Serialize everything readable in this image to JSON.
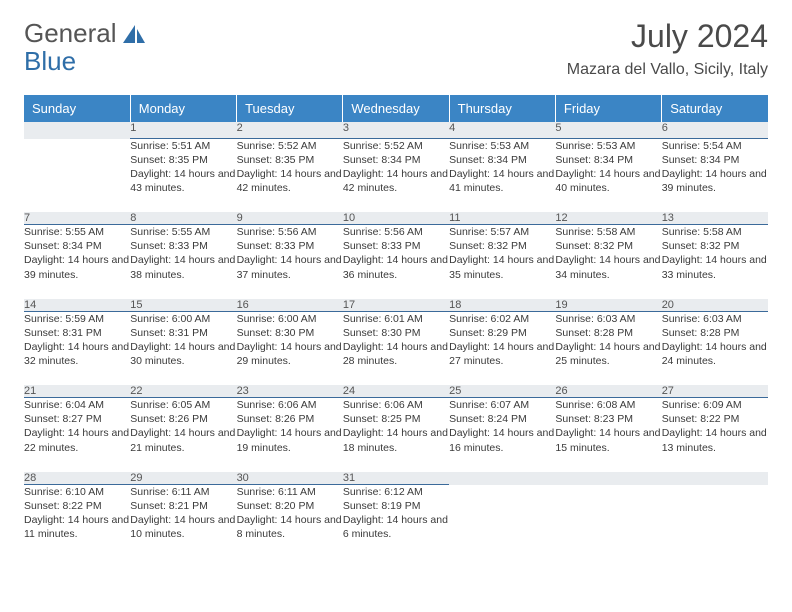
{
  "logo": {
    "part1": "General",
    "part2": "Blue"
  },
  "title": "July 2024",
  "location": "Mazara del Vallo, Sicily, Italy",
  "colors": {
    "header_bg": "#3b85c5",
    "header_text": "#ffffff",
    "daynum_bg": "#e9ecef",
    "day_border": "#3b6a9a",
    "logo_blue": "#2f6ea8",
    "text": "#3a3a3a"
  },
  "weekdays": [
    "Sunday",
    "Monday",
    "Tuesday",
    "Wednesday",
    "Thursday",
    "Friday",
    "Saturday"
  ],
  "weeks": [
    [
      null,
      {
        "n": "1",
        "sr": "5:51 AM",
        "ss": "8:35 PM",
        "dl": "14 hours and 43 minutes."
      },
      {
        "n": "2",
        "sr": "5:52 AM",
        "ss": "8:35 PM",
        "dl": "14 hours and 42 minutes."
      },
      {
        "n": "3",
        "sr": "5:52 AM",
        "ss": "8:34 PM",
        "dl": "14 hours and 42 minutes."
      },
      {
        "n": "4",
        "sr": "5:53 AM",
        "ss": "8:34 PM",
        "dl": "14 hours and 41 minutes."
      },
      {
        "n": "5",
        "sr": "5:53 AM",
        "ss": "8:34 PM",
        "dl": "14 hours and 40 minutes."
      },
      {
        "n": "6",
        "sr": "5:54 AM",
        "ss": "8:34 PM",
        "dl": "14 hours and 39 minutes."
      }
    ],
    [
      {
        "n": "7",
        "sr": "5:55 AM",
        "ss": "8:34 PM",
        "dl": "14 hours and 39 minutes."
      },
      {
        "n": "8",
        "sr": "5:55 AM",
        "ss": "8:33 PM",
        "dl": "14 hours and 38 minutes."
      },
      {
        "n": "9",
        "sr": "5:56 AM",
        "ss": "8:33 PM",
        "dl": "14 hours and 37 minutes."
      },
      {
        "n": "10",
        "sr": "5:56 AM",
        "ss": "8:33 PM",
        "dl": "14 hours and 36 minutes."
      },
      {
        "n": "11",
        "sr": "5:57 AM",
        "ss": "8:32 PM",
        "dl": "14 hours and 35 minutes."
      },
      {
        "n": "12",
        "sr": "5:58 AM",
        "ss": "8:32 PM",
        "dl": "14 hours and 34 minutes."
      },
      {
        "n": "13",
        "sr": "5:58 AM",
        "ss": "8:32 PM",
        "dl": "14 hours and 33 minutes."
      }
    ],
    [
      {
        "n": "14",
        "sr": "5:59 AM",
        "ss": "8:31 PM",
        "dl": "14 hours and 32 minutes."
      },
      {
        "n": "15",
        "sr": "6:00 AM",
        "ss": "8:31 PM",
        "dl": "14 hours and 30 minutes."
      },
      {
        "n": "16",
        "sr": "6:00 AM",
        "ss": "8:30 PM",
        "dl": "14 hours and 29 minutes."
      },
      {
        "n": "17",
        "sr": "6:01 AM",
        "ss": "8:30 PM",
        "dl": "14 hours and 28 minutes."
      },
      {
        "n": "18",
        "sr": "6:02 AM",
        "ss": "8:29 PM",
        "dl": "14 hours and 27 minutes."
      },
      {
        "n": "19",
        "sr": "6:03 AM",
        "ss": "8:28 PM",
        "dl": "14 hours and 25 minutes."
      },
      {
        "n": "20",
        "sr": "6:03 AM",
        "ss": "8:28 PM",
        "dl": "14 hours and 24 minutes."
      }
    ],
    [
      {
        "n": "21",
        "sr": "6:04 AM",
        "ss": "8:27 PM",
        "dl": "14 hours and 22 minutes."
      },
      {
        "n": "22",
        "sr": "6:05 AM",
        "ss": "8:26 PM",
        "dl": "14 hours and 21 minutes."
      },
      {
        "n": "23",
        "sr": "6:06 AM",
        "ss": "8:26 PM",
        "dl": "14 hours and 19 minutes."
      },
      {
        "n": "24",
        "sr": "6:06 AM",
        "ss": "8:25 PM",
        "dl": "14 hours and 18 minutes."
      },
      {
        "n": "25",
        "sr": "6:07 AM",
        "ss": "8:24 PM",
        "dl": "14 hours and 16 minutes."
      },
      {
        "n": "26",
        "sr": "6:08 AM",
        "ss": "8:23 PM",
        "dl": "14 hours and 15 minutes."
      },
      {
        "n": "27",
        "sr": "6:09 AM",
        "ss": "8:22 PM",
        "dl": "14 hours and 13 minutes."
      }
    ],
    [
      {
        "n": "28",
        "sr": "6:10 AM",
        "ss": "8:22 PM",
        "dl": "14 hours and 11 minutes."
      },
      {
        "n": "29",
        "sr": "6:11 AM",
        "ss": "8:21 PM",
        "dl": "14 hours and 10 minutes."
      },
      {
        "n": "30",
        "sr": "6:11 AM",
        "ss": "8:20 PM",
        "dl": "14 hours and 8 minutes."
      },
      {
        "n": "31",
        "sr": "6:12 AM",
        "ss": "8:19 PM",
        "dl": "14 hours and 6 minutes."
      },
      null,
      null,
      null
    ]
  ],
  "labels": {
    "sunrise": "Sunrise:",
    "sunset": "Sunset:",
    "daylight": "Daylight:"
  }
}
